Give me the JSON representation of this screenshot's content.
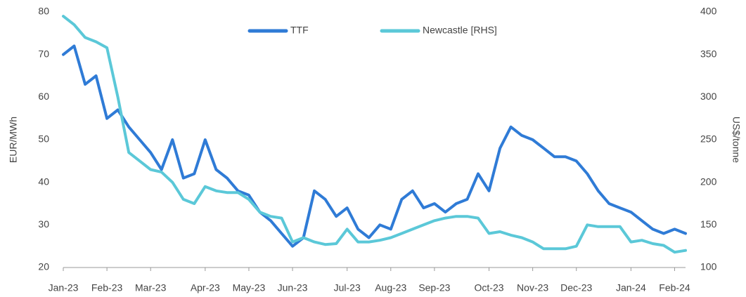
{
  "chart_data": {
    "type": "line",
    "categories": [
      "Jan-23",
      null,
      null,
      null,
      "Feb-23",
      null,
      null,
      null,
      "Mar-23",
      null,
      null,
      null,
      null,
      "Apr-23",
      null,
      null,
      null,
      "May-23",
      null,
      null,
      null,
      "Jun-23",
      null,
      null,
      null,
      null,
      "Jul-23",
      null,
      null,
      null,
      "Aug-23",
      null,
      null,
      null,
      "Sep-23",
      null,
      null,
      null,
      null,
      "Oct-23",
      null,
      null,
      null,
      "Nov-23",
      null,
      null,
      null,
      "Dec-23",
      null,
      null,
      null,
      null,
      "Jan-24",
      null,
      null,
      null,
      "Feb-24",
      null
    ],
    "series": [
      {
        "name": "TTF",
        "color": "#2f7bd6",
        "values": [
          70,
          72,
          63,
          65,
          55,
          57,
          53,
          50,
          47,
          43,
          50,
          41,
          42,
          50,
          43,
          41,
          38,
          37,
          33,
          31,
          28,
          25,
          27,
          38,
          36,
          32,
          34,
          29,
          27,
          30,
          29,
          36,
          38,
          34,
          35,
          33,
          35,
          36,
          42,
          38,
          48,
          53,
          51,
          50,
          48,
          46,
          46,
          45,
          42,
          38,
          35,
          34,
          33,
          31,
          29,
          28,
          29,
          28
        ]
      },
      {
        "name": "Newcastle [RHS]",
        "color": "#5bc8d8",
        "axis": "y2",
        "values": [
          395,
          385,
          370,
          365,
          358,
          300,
          235,
          225,
          215,
          212,
          200,
          180,
          175,
          195,
          190,
          188,
          188,
          180,
          165,
          160,
          158,
          130,
          135,
          130,
          127,
          128,
          145,
          130,
          130,
          132,
          135,
          140,
          145,
          150,
          155,
          158,
          160,
          160,
          158,
          140,
          142,
          138,
          135,
          130,
          122,
          122,
          122,
          125,
          150,
          148,
          148,
          148,
          130,
          132,
          128,
          126,
          118,
          120
        ]
      }
    ],
    "ylabel": "EUR/MWh",
    "y2label": "US$/tonne",
    "ylim": [
      20,
      80
    ],
    "yticks": [
      20,
      30,
      40,
      50,
      60,
      70,
      80
    ],
    "y2lim": [
      100,
      400
    ],
    "y2ticks": [
      100,
      150,
      200,
      250,
      300,
      350,
      400
    ],
    "grid": false,
    "legend": "top"
  }
}
